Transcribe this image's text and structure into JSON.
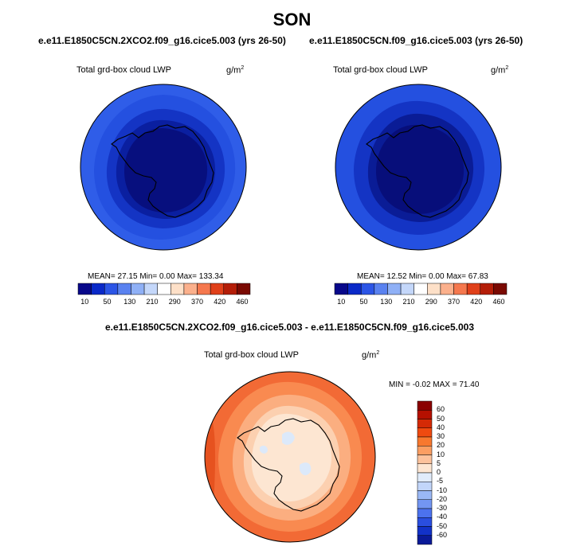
{
  "season": "SON",
  "panels": [
    {
      "case": "e.e11.E1850C5CN.2XCO2.f09_g16.cice5.003 (yrs 26-50)",
      "variable": "Total grd-box cloud LWP",
      "units": "g/m",
      "units_sup": "2",
      "stats": "MEAN= 27.15  Min=  0.00  Max= 133.34"
    },
    {
      "case": "e.e11.E1850C5CN.f09_g16.cice5.003 (yrs 26-50)",
      "variable": "Total grd-box cloud LWP",
      "units": "g/m",
      "units_sup": "2",
      "stats": "MEAN= 12.52  Min=  0.00  Max=  67.83"
    }
  ],
  "diff": {
    "title": "e.e11.E1850C5CN.2XCO2.f09_g16.cice5.003 - e.e11.E1850C5CN.f09_g16.cice5.003",
    "variable": "Total grd-box cloud LWP",
    "units": "g/m",
    "units_sup": "2",
    "stats": "MIN = -0.02 MAX = 71.40"
  },
  "colorbar": {
    "labels": [
      "10",
      "50",
      "130",
      "210",
      "290",
      "370",
      "420",
      "460"
    ],
    "colors": [
      "#08088a",
      "#0a29c8",
      "#2c55e6",
      "#5a82f0",
      "#8fb0f6",
      "#c4d7fa",
      "#ffffff",
      "#fde0c8",
      "#fbb08c",
      "#f5784e",
      "#e0401a",
      "#b41e08",
      "#7a0a02"
    ]
  },
  "diff_colorbar": {
    "labels": [
      "60",
      "50",
      "40",
      "30",
      "20",
      "10",
      "5",
      "0",
      "-5",
      "-10",
      "-20",
      "-30",
      "-40",
      "-50",
      "-60"
    ],
    "colors": [
      "#8a0000",
      "#b51000",
      "#d42a06",
      "#ef4a10",
      "#f8782e",
      "#fb9e62",
      "#fcc29c",
      "#fde6d2",
      "#e1ecfb",
      "#c2d6fa",
      "#9ab8f6",
      "#7396f2",
      "#4c72ee",
      "#2a4edf",
      "#1232c8",
      "#0a1a98"
    ]
  }
}
